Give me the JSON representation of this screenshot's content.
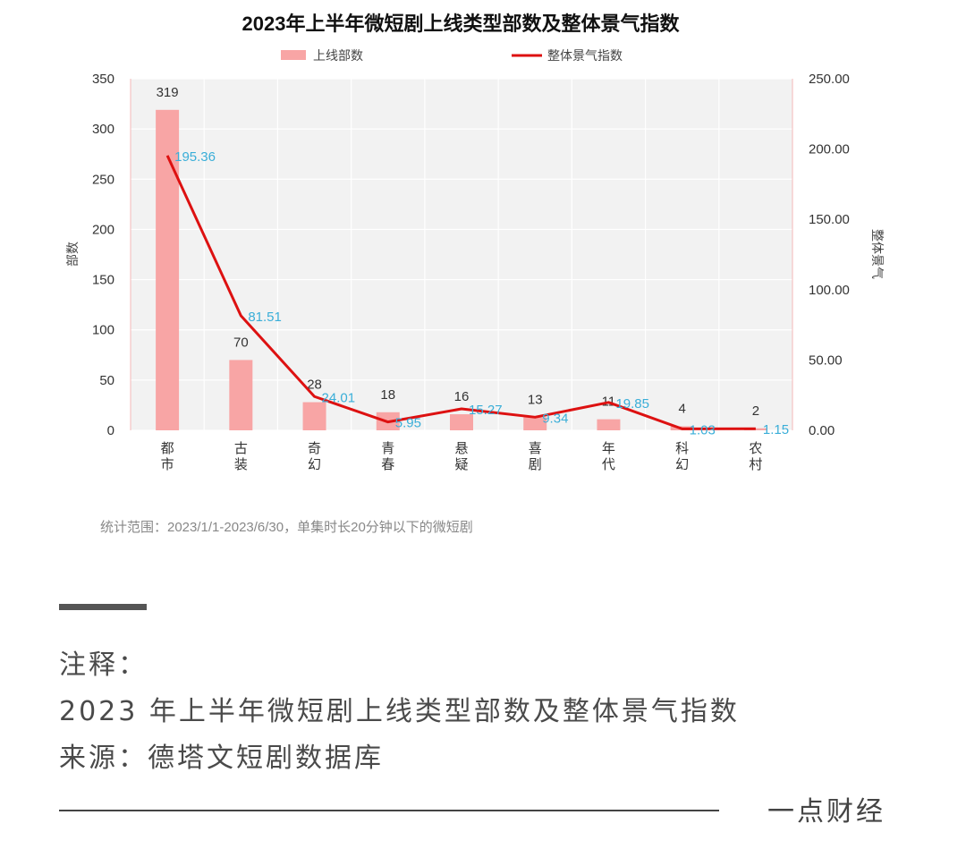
{
  "chart_data": {
    "type": "bar+line",
    "title": "2023年上半年微短剧上线类型部数及整体景气指数",
    "categories": [
      [
        "都",
        "市"
      ],
      [
        "古",
        "装"
      ],
      [
        "奇",
        "幻"
      ],
      [
        "青",
        "春"
      ],
      [
        "悬",
        "疑"
      ],
      [
        "喜",
        "剧"
      ],
      [
        "年",
        "代"
      ],
      [
        "科",
        "幻"
      ],
      [
        "农",
        "村"
      ]
    ],
    "series": [
      {
        "name": "上线部数",
        "kind": "bar",
        "axis": "left",
        "color": "#f8a5a5",
        "values": [
          319,
          70,
          28,
          18,
          16,
          13,
          11,
          4,
          2
        ],
        "labels": [
          "319",
          "70",
          "28",
          "18",
          "16",
          "13",
          "11",
          "4",
          "2"
        ]
      },
      {
        "name": "整体景气指数",
        "kind": "line",
        "axis": "right",
        "color": "#dd1111",
        "values": [
          195.36,
          81.51,
          24.01,
          5.95,
          15.27,
          9.34,
          19.85,
          1.03,
          1.15
        ],
        "labels": [
          "195.36",
          "81.51",
          "24.01",
          "5.95",
          "15.27",
          "9.34",
          "19.85",
          "1.03",
          "1.15"
        ]
      }
    ],
    "ylabel": "部数",
    "y2label": "整体景气",
    "ylim": [
      0,
      350
    ],
    "y2lim": [
      0,
      250
    ],
    "yticks": [
      "0",
      "50",
      "100",
      "150",
      "200",
      "250",
      "300",
      "350"
    ],
    "y2ticks": [
      "0.00",
      "50.00",
      "100.00",
      "150.00",
      "200.00",
      "250.00"
    ],
    "grid": true,
    "legend_position": "top-center",
    "note": "统计范围：2023/1/1-2023/6/30，单集时长20分钟以下的微短剧"
  },
  "notes": {
    "heading": "注释：",
    "line1": "2023 年上半年微短剧上线类型部数及整体景气指数",
    "line2": "来源：德塔文短剧数据库"
  },
  "brand": "一点财经",
  "colors": {
    "line_label": "#3aaed8",
    "grid": "#ffffff",
    "plot_bg": "#f2f2f2"
  }
}
